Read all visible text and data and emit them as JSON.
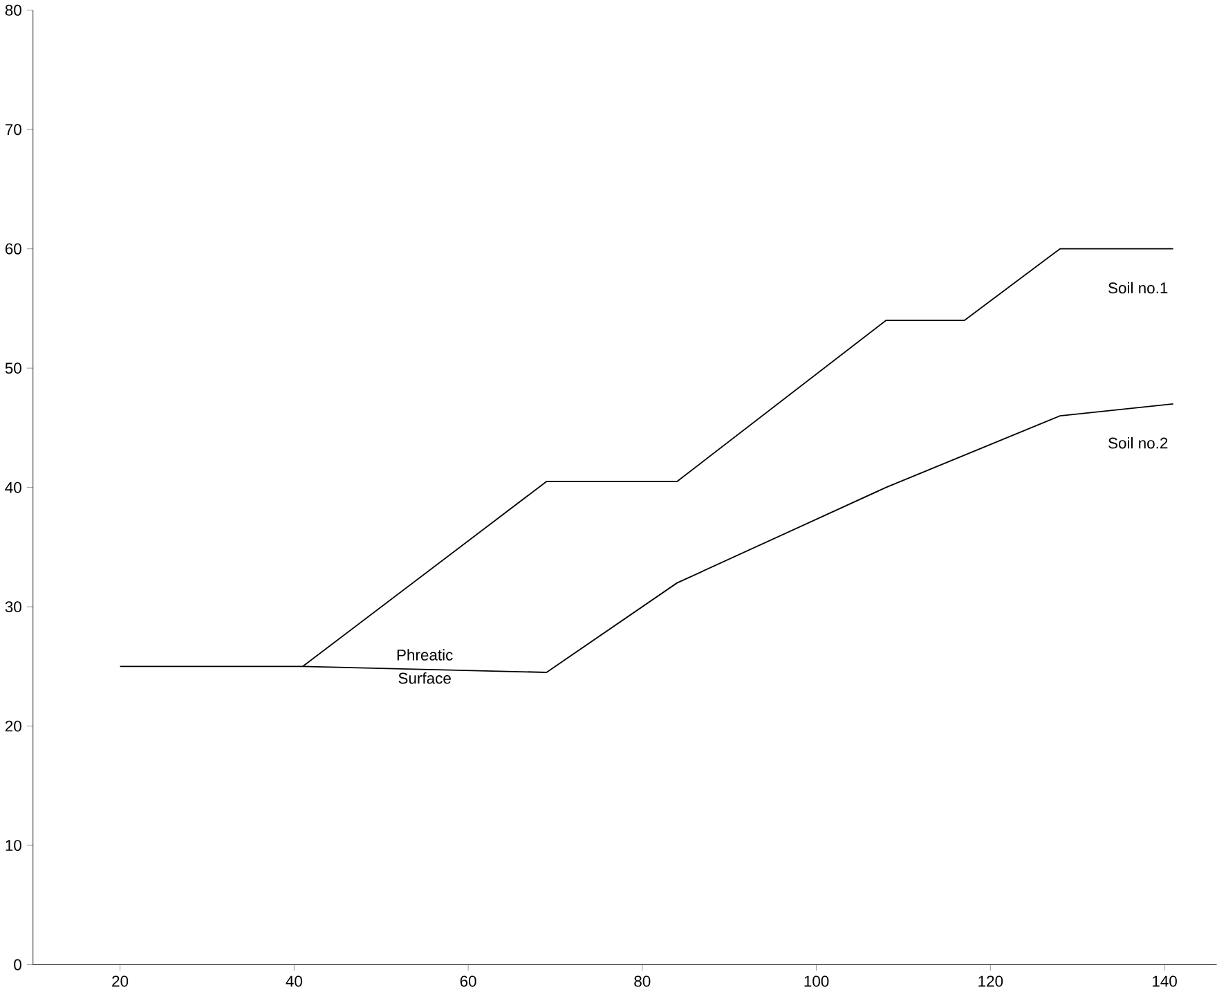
{
  "chart_data": {
    "type": "line",
    "xlim": [
      10,
      146
    ],
    "ylim": [
      0,
      80
    ],
    "xticks": [
      20,
      40,
      60,
      80,
      100,
      120,
      140
    ],
    "yticks": [
      0,
      10,
      20,
      30,
      40,
      50,
      60,
      70,
      80
    ],
    "series": [
      {
        "name": "Soil no.1",
        "color": "#000000",
        "x": [
          41,
          69,
          84,
          108,
          117,
          128,
          141
        ],
        "values": [
          25,
          40.5,
          40.5,
          54,
          54,
          60,
          60
        ]
      },
      {
        "name": "Soil no.2",
        "color": "#000000",
        "x": [
          20,
          41,
          69,
          84,
          108,
          118,
          128,
          141
        ],
        "values": [
          25,
          25,
          24.5,
          32,
          40,
          43,
          46,
          47
        ]
      }
    ],
    "annotations": [
      {
        "text": "Phreatic",
        "x": 55,
        "y": 25
      },
      {
        "text": "Surface",
        "x": 55,
        "y": 25
      }
    ]
  }
}
